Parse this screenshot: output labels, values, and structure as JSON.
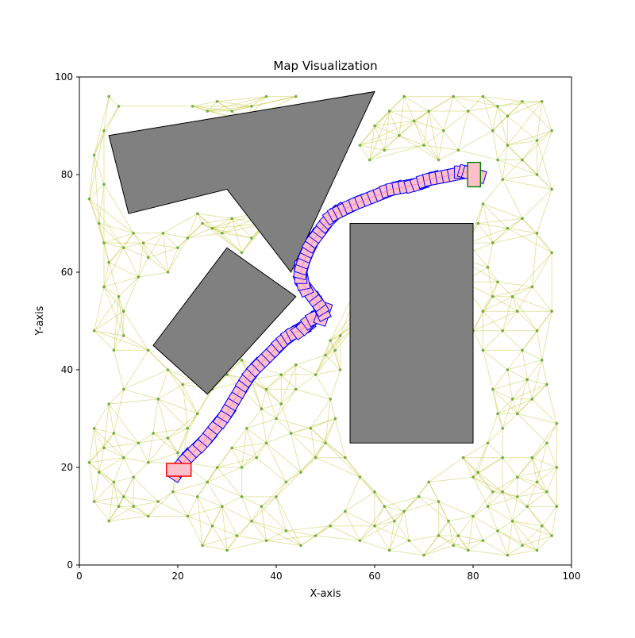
{
  "chart_data": {
    "type": "scatter",
    "title": "Map Visualization",
    "xlabel": "X-axis",
    "ylabel": "Y-axis",
    "xlim": [
      0,
      100
    ],
    "ylim": [
      0,
      100
    ],
    "xticks": [
      "0",
      "20",
      "40",
      "60",
      "80",
      "100"
    ],
    "yticks": [
      "0",
      "20",
      "40",
      "60",
      "80",
      "100"
    ],
    "xtick_values": [
      0,
      20,
      40,
      60,
      80,
      100
    ],
    "ytick_values": [
      0,
      20,
      40,
      60,
      80,
      100
    ],
    "grid": false,
    "colors": {
      "obstacle_fill": "#808080",
      "obstacle_edge": "#000000",
      "roadmap_edge": "#bcbd22",
      "roadmap_node": "#5aa02c",
      "path_fill": "#ffc0cb",
      "path_edge": "#0000ff",
      "start_edge": "#ff0000",
      "goal_fill": "#ffc0cb",
      "goal_edge": "#008000",
      "path_line": "#ff69b4"
    },
    "obstacles": [
      {
        "name": "triangle-obstacle",
        "points": [
          [
            6,
            88
          ],
          [
            60,
            97
          ],
          [
            43,
            60
          ],
          [
            30,
            77
          ],
          [
            10,
            72
          ]
        ]
      },
      {
        "name": "diamond-obstacle",
        "points": [
          [
            30,
            65
          ],
          [
            44,
            55
          ],
          [
            26,
            35
          ],
          [
            15,
            45
          ]
        ]
      },
      {
        "name": "rectangle-obstacle",
        "points": [
          [
            55,
            70
          ],
          [
            80,
            70
          ],
          [
            80,
            25
          ],
          [
            55,
            25
          ]
        ]
      }
    ],
    "start": {
      "x": 20.2,
      "y": 19.5,
      "w": 5,
      "h": 2.6
    },
    "goal": {
      "x": 80.2,
      "y": 80,
      "w": 2.6,
      "h": 5
    },
    "path": [
      [
        20.2,
        19.5
      ],
      [
        21.5,
        21.5
      ],
      [
        23.5,
        23.5
      ],
      [
        25.5,
        25.5
      ],
      [
        27.5,
        28
      ],
      [
        29.5,
        30.5
      ],
      [
        31,
        33
      ],
      [
        32.5,
        35.5
      ],
      [
        34,
        38
      ],
      [
        35.5,
        40
      ],
      [
        37.5,
        42
      ],
      [
        39.5,
        44
      ],
      [
        41.5,
        46
      ],
      [
        43.5,
        47.5
      ],
      [
        45.5,
        48.5
      ],
      [
        47.5,
        50.5
      ],
      [
        49.5,
        51.5
      ],
      [
        48.5,
        53.5
      ],
      [
        47,
        55.5
      ],
      [
        45.5,
        57.5
      ],
      [
        45,
        60
      ],
      [
        45.5,
        62
      ],
      [
        46.5,
        64.5
      ],
      [
        47.5,
        66.5
      ],
      [
        49,
        68.5
      ],
      [
        50.5,
        70.5
      ],
      [
        52,
        72
      ],
      [
        54,
        73
      ],
      [
        56,
        74
      ],
      [
        58.5,
        75
      ],
      [
        61,
        76
      ],
      [
        63.5,
        77
      ],
      [
        66,
        77.5
      ],
      [
        68.5,
        78
      ],
      [
        71,
        79
      ],
      [
        73.5,
        79.5
      ],
      [
        76,
        80
      ],
      [
        78.5,
        80.5
      ],
      [
        80.2,
        80
      ]
    ],
    "roadmap_nodes": [
      [
        6,
        96
      ],
      [
        8,
        94
      ],
      [
        5,
        89
      ],
      [
        3,
        84
      ],
      [
        2,
        75
      ],
      [
        5,
        78
      ],
      [
        4,
        70
      ],
      [
        5,
        66
      ],
      [
        6,
        62
      ],
      [
        5,
        57
      ],
      [
        8,
        55
      ],
      [
        9,
        65
      ],
      [
        11,
        68
      ],
      [
        13,
        66
      ],
      [
        14,
        63
      ],
      [
        17,
        68
      ],
      [
        20,
        65
      ],
      [
        22,
        67
      ],
      [
        25,
        70
      ],
      [
        27,
        69
      ],
      [
        29,
        68
      ],
      [
        31,
        71
      ],
      [
        24,
        72
      ],
      [
        18,
        60
      ],
      [
        12,
        59
      ],
      [
        9,
        52
      ],
      [
        3,
        48
      ],
      [
        7,
        44
      ],
      [
        9,
        47
      ],
      [
        14,
        44
      ],
      [
        18,
        40
      ],
      [
        21,
        37
      ],
      [
        16,
        34
      ],
      [
        9,
        36
      ],
      [
        6,
        33
      ],
      [
        3,
        28
      ],
      [
        5,
        24
      ],
      [
        2,
        21
      ],
      [
        4,
        19
      ],
      [
        7,
        17
      ],
      [
        9,
        14
      ],
      [
        11,
        12
      ],
      [
        14,
        10
      ],
      [
        16,
        13
      ],
      [
        19,
        15
      ],
      [
        24,
        14
      ],
      [
        26,
        17
      ],
      [
        21,
        21
      ],
      [
        18,
        26
      ],
      [
        15,
        27
      ],
      [
        12,
        25
      ],
      [
        9,
        22
      ],
      [
        7,
        27
      ],
      [
        20,
        23
      ],
      [
        25,
        4
      ],
      [
        30,
        3
      ],
      [
        32,
        6
      ],
      [
        35,
        9
      ],
      [
        37,
        12
      ],
      [
        40,
        14
      ],
      [
        42,
        17
      ],
      [
        45,
        19
      ],
      [
        48,
        22
      ],
      [
        50,
        25
      ],
      [
        47,
        28
      ],
      [
        43,
        27
      ],
      [
        40,
        30
      ],
      [
        37,
        32
      ],
      [
        34,
        28
      ],
      [
        31,
        24
      ],
      [
        28,
        20
      ],
      [
        33,
        20
      ],
      [
        36,
        22
      ],
      [
        38,
        25
      ],
      [
        41,
        33
      ],
      [
        44,
        36
      ],
      [
        48,
        39
      ],
      [
        50,
        43
      ],
      [
        53,
        40
      ],
      [
        51,
        34
      ],
      [
        52,
        30
      ],
      [
        54,
        22
      ],
      [
        57,
        18
      ],
      [
        60,
        15
      ],
      [
        62,
        12
      ],
      [
        64,
        9
      ],
      [
        66,
        11
      ],
      [
        69,
        14
      ],
      [
        71,
        17
      ],
      [
        73,
        13
      ],
      [
        75,
        9
      ],
      [
        77,
        6
      ],
      [
        79,
        3
      ],
      [
        82,
        5
      ],
      [
        85,
        7
      ],
      [
        88,
        9
      ],
      [
        91,
        12
      ],
      [
        94,
        8
      ],
      [
        96,
        6
      ],
      [
        93,
        3
      ],
      [
        90,
        4
      ],
      [
        87,
        2
      ],
      [
        84,
        15
      ],
      [
        81,
        19
      ],
      [
        78,
        22
      ],
      [
        80,
        18
      ],
      [
        83,
        25
      ],
      [
        86,
        28
      ],
      [
        89,
        31
      ],
      [
        92,
        34
      ],
      [
        95,
        37
      ],
      [
        97,
        29
      ],
      [
        95,
        25
      ],
      [
        92,
        22
      ],
      [
        89,
        18
      ],
      [
        86,
        22
      ],
      [
        84,
        36
      ],
      [
        87,
        40
      ],
      [
        90,
        44
      ],
      [
        93,
        48
      ],
      [
        96,
        52
      ],
      [
        92,
        57
      ],
      [
        88,
        55
      ],
      [
        85,
        58
      ],
      [
        83,
        61
      ],
      [
        84,
        66
      ],
      [
        87,
        69
      ],
      [
        90,
        71
      ],
      [
        93,
        68
      ],
      [
        96,
        64
      ],
      [
        96,
        77
      ],
      [
        93,
        80
      ],
      [
        90,
        83
      ],
      [
        87,
        86
      ],
      [
        84,
        89
      ],
      [
        87,
        92
      ],
      [
        90,
        95
      ],
      [
        94,
        95
      ],
      [
        96,
        89
      ],
      [
        93,
        87
      ],
      [
        86,
        79
      ],
      [
        82,
        74
      ],
      [
        85,
        83
      ],
      [
        77,
        85
      ],
      [
        74,
        89
      ],
      [
        71,
        93
      ],
      [
        68,
        91
      ],
      [
        65,
        88
      ],
      [
        62,
        85
      ],
      [
        59,
        83
      ],
      [
        57,
        86
      ],
      [
        60,
        90
      ],
      [
        63,
        93
      ],
      [
        66,
        96
      ],
      [
        70,
        86
      ],
      [
        73,
        83
      ],
      [
        76,
        96
      ],
      [
        79,
        93
      ],
      [
        82,
        96
      ],
      [
        85,
        94
      ],
      [
        35,
        94
      ],
      [
        38,
        96
      ],
      [
        34,
        91
      ],
      [
        31,
        93
      ],
      [
        28,
        95
      ],
      [
        26,
        93
      ],
      [
        23,
        94
      ],
      [
        44,
        96
      ],
      [
        40,
        73
      ],
      [
        38,
        70
      ],
      [
        35,
        67
      ],
      [
        33,
        64
      ],
      [
        60,
        67
      ],
      [
        62,
        64
      ],
      [
        58,
        60
      ],
      [
        59,
        55
      ],
      [
        57,
        50
      ],
      [
        53,
        47
      ],
      [
        51,
        46
      ],
      [
        52,
        44
      ],
      [
        44,
        41
      ],
      [
        41,
        39
      ],
      [
        38,
        36
      ],
      [
        35,
        38
      ],
      [
        33,
        42
      ],
      [
        30,
        39
      ],
      [
        27,
        36
      ],
      [
        24,
        31
      ],
      [
        22,
        28
      ],
      [
        14,
        21
      ],
      [
        11,
        18
      ],
      [
        8,
        12
      ],
      [
        6,
        9
      ],
      [
        3,
        13
      ],
      [
        22,
        10
      ],
      [
        27,
        8
      ],
      [
        29,
        12
      ],
      [
        33,
        14
      ],
      [
        38,
        5
      ],
      [
        42,
        7
      ],
      [
        45,
        4
      ],
      [
        48,
        6
      ],
      [
        51,
        8
      ],
      [
        54,
        11
      ],
      [
        57,
        5
      ],
      [
        60,
        8
      ],
      [
        63,
        3
      ],
      [
        67,
        5
      ],
      [
        70,
        2
      ],
      [
        73,
        6
      ],
      [
        76,
        4
      ],
      [
        80,
        10
      ],
      [
        83,
        12
      ],
      [
        86,
        15
      ],
      [
        89,
        14
      ],
      [
        93,
        17
      ],
      [
        95,
        15
      ],
      [
        97,
        12
      ],
      [
        97,
        20
      ],
      [
        94,
        42
      ],
      [
        91,
        38
      ],
      [
        88,
        34
      ],
      [
        85,
        31
      ],
      [
        82,
        44
      ],
      [
        80,
        48
      ],
      [
        82,
        52
      ],
      [
        84,
        55
      ],
      [
        86,
        48
      ],
      [
        89,
        52
      ],
      [
        78,
        58
      ],
      [
        77,
        63
      ],
      [
        79,
        66
      ],
      [
        81,
        70
      ]
    ]
  }
}
